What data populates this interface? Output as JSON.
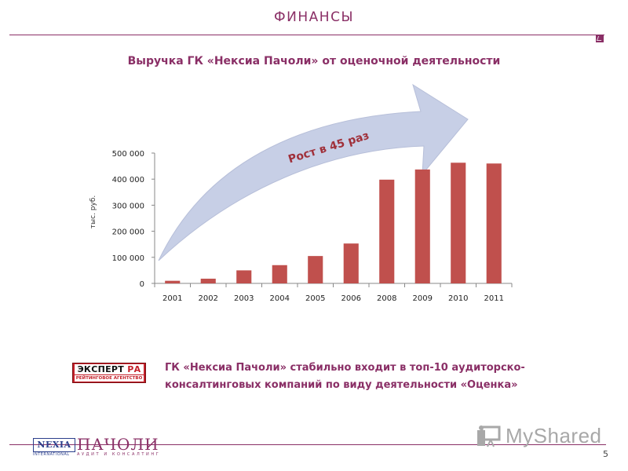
{
  "slide": {
    "title": "ФИНАНСЫ",
    "page_number": "5"
  },
  "colors": {
    "brand": "#8a2f66",
    "bar": "#c0504d",
    "arrow": "#c7cfe6"
  },
  "chart_data": {
    "type": "bar",
    "title": "Выручка ГК «Нексиа Пачоли» от оценочной деятельности",
    "xlabel": "",
    "ylabel": "тыс. руб.",
    "categories": [
      "2001",
      "2002",
      "2003",
      "2004",
      "2005",
      "2006",
      "2008",
      "2009",
      "2010",
      "2011"
    ],
    "values": [
      10000,
      18000,
      50000,
      70000,
      105000,
      153000,
      398000,
      437000,
      463000,
      460000
    ],
    "yticks": [
      "0",
      "100 000",
      "200 000",
      "300 000",
      "400 000",
      "500 000"
    ],
    "ylim": [
      0,
      500000
    ],
    "grid": false,
    "legend": "none",
    "annotation": "Рост в 45 раз"
  },
  "expert": {
    "logo_main_left": "ЭКСПЕРТ",
    "logo_main_right": "РА",
    "logo_sub": "РЕЙТИНГОВОЕ АГЕНТСТВО",
    "line1": "ГК «Нексиа Пачоли» стабильно входит в топ-10 аудиторско-",
    "line2": "консалтинговых компаний по виду деятельности «Оценка»"
  },
  "footer": {
    "nexia": "NEXIA",
    "nexia_sub": "INTERNATIONAL",
    "pacholi": "ПАЧОЛИ",
    "pacholi_sub": "АУДИТ И КОНСАЛТИНГ",
    "myshared": "MyShared"
  }
}
